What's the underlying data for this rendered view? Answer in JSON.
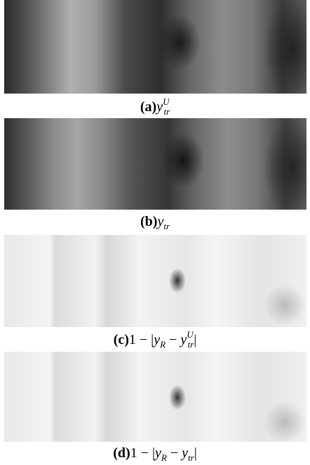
{
  "captions": [
    [
      {
        "text": "(a)",
        "style": "b"
      },
      {
        "text": "y",
        "style": "it"
      },
      {
        "text": "tr",
        "style": "sub",
        "sup": "U"
      }
    ],
    [
      {
        "text": "(b)",
        "style": "b"
      },
      {
        "text": "y",
        "style": "it"
      },
      {
        "text": "tr",
        "style": "sub"
      }
    ],
    [
      {
        "text": "(c)",
        "style": "b"
      },
      {
        "text": "1 − |",
        "style": ""
      },
      {
        "text": "y",
        "style": "it"
      },
      {
        "text": "R",
        "style": "sub"
      },
      {
        "text": " − ",
        "style": ""
      },
      {
        "text": "y",
        "style": "it"
      },
      {
        "text": "tr",
        "style": "sub",
        "sup": "U"
      },
      {
        "text": "|",
        "style": ""
      }
    ],
    [
      {
        "text": "(d)",
        "style": "b"
      },
      {
        "text": "1 − |",
        "style": ""
      },
      {
        "text": "y",
        "style": "it"
      },
      {
        "text": "R",
        "style": "sub"
      },
      {
        "text": " − ",
        "style": ""
      },
      {
        "text": "y",
        "style": "it"
      },
      {
        "text": "tr",
        "style": "sub"
      },
      {
        "text": "|",
        "style": ""
      }
    ]
  ]
}
